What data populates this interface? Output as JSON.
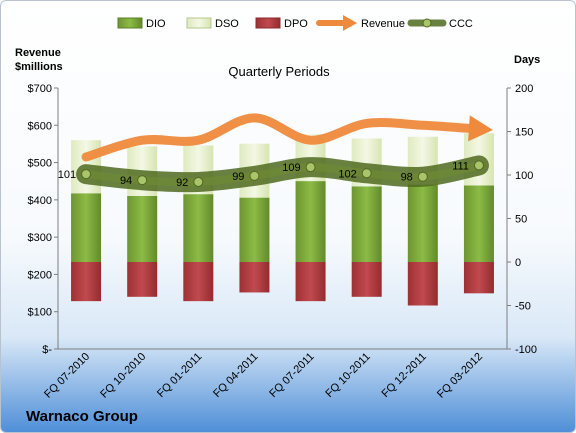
{
  "company": "Warnaco Group",
  "chart_data": {
    "type": "bar",
    "title": "Quarterly Periods",
    "y_left_label_line1": "Revenue",
    "y_left_label_line2": "$millions",
    "y_right_label": "Days",
    "ylim_left": [
      0,
      700
    ],
    "ylim_right": [
      -100,
      200
    ],
    "left_ticks": [
      "$-",
      "$100",
      "$200",
      "$300",
      "$400",
      "$500",
      "$600",
      "$700"
    ],
    "right_ticks": [
      "-100",
      "-50",
      "0",
      "50",
      "100",
      "150",
      "200"
    ],
    "categories": [
      "FQ 07-2010",
      "FQ 10-2010",
      "FQ 01-2011",
      "FQ 04-2011",
      "FQ 07-2011",
      "FQ 10-2011",
      "FQ 12-2011",
      "FQ 03-2012"
    ],
    "legend": [
      "DIO",
      "DSO",
      "DPO",
      "Revenue",
      "CCC"
    ],
    "series": [
      {
        "name": "DIO",
        "axis": "right",
        "values": [
          79,
          76,
          78,
          74,
          93,
          87,
          89,
          88
        ],
        "color": "#7ba33b"
      },
      {
        "name": "DSO",
        "axis": "right",
        "values": [
          61,
          57,
          56,
          62,
          54,
          55,
          55,
          60
        ],
        "color": "#e4efc8"
      },
      {
        "name": "DPO",
        "axis": "right",
        "values": [
          -45,
          -40,
          -45,
          -35,
          -45,
          -40,
          -50,
          -36
        ],
        "color": "#b03a3e"
      },
      {
        "name": "Revenue",
        "axis": "left",
        "values": [
          515,
          560,
          560,
          620,
          560,
          605,
          600,
          590
        ],
        "color": "#ef8a3c"
      },
      {
        "name": "CCC",
        "axis": "right",
        "values": [
          101,
          94,
          92,
          99,
          109,
          102,
          98,
          111
        ],
        "labels": [
          "101",
          "94",
          "92",
          "99",
          "109",
          "102",
          "98",
          "111"
        ],
        "color": "#5f7a2a"
      }
    ],
    "grid": false,
    "legend_position": "top"
  }
}
